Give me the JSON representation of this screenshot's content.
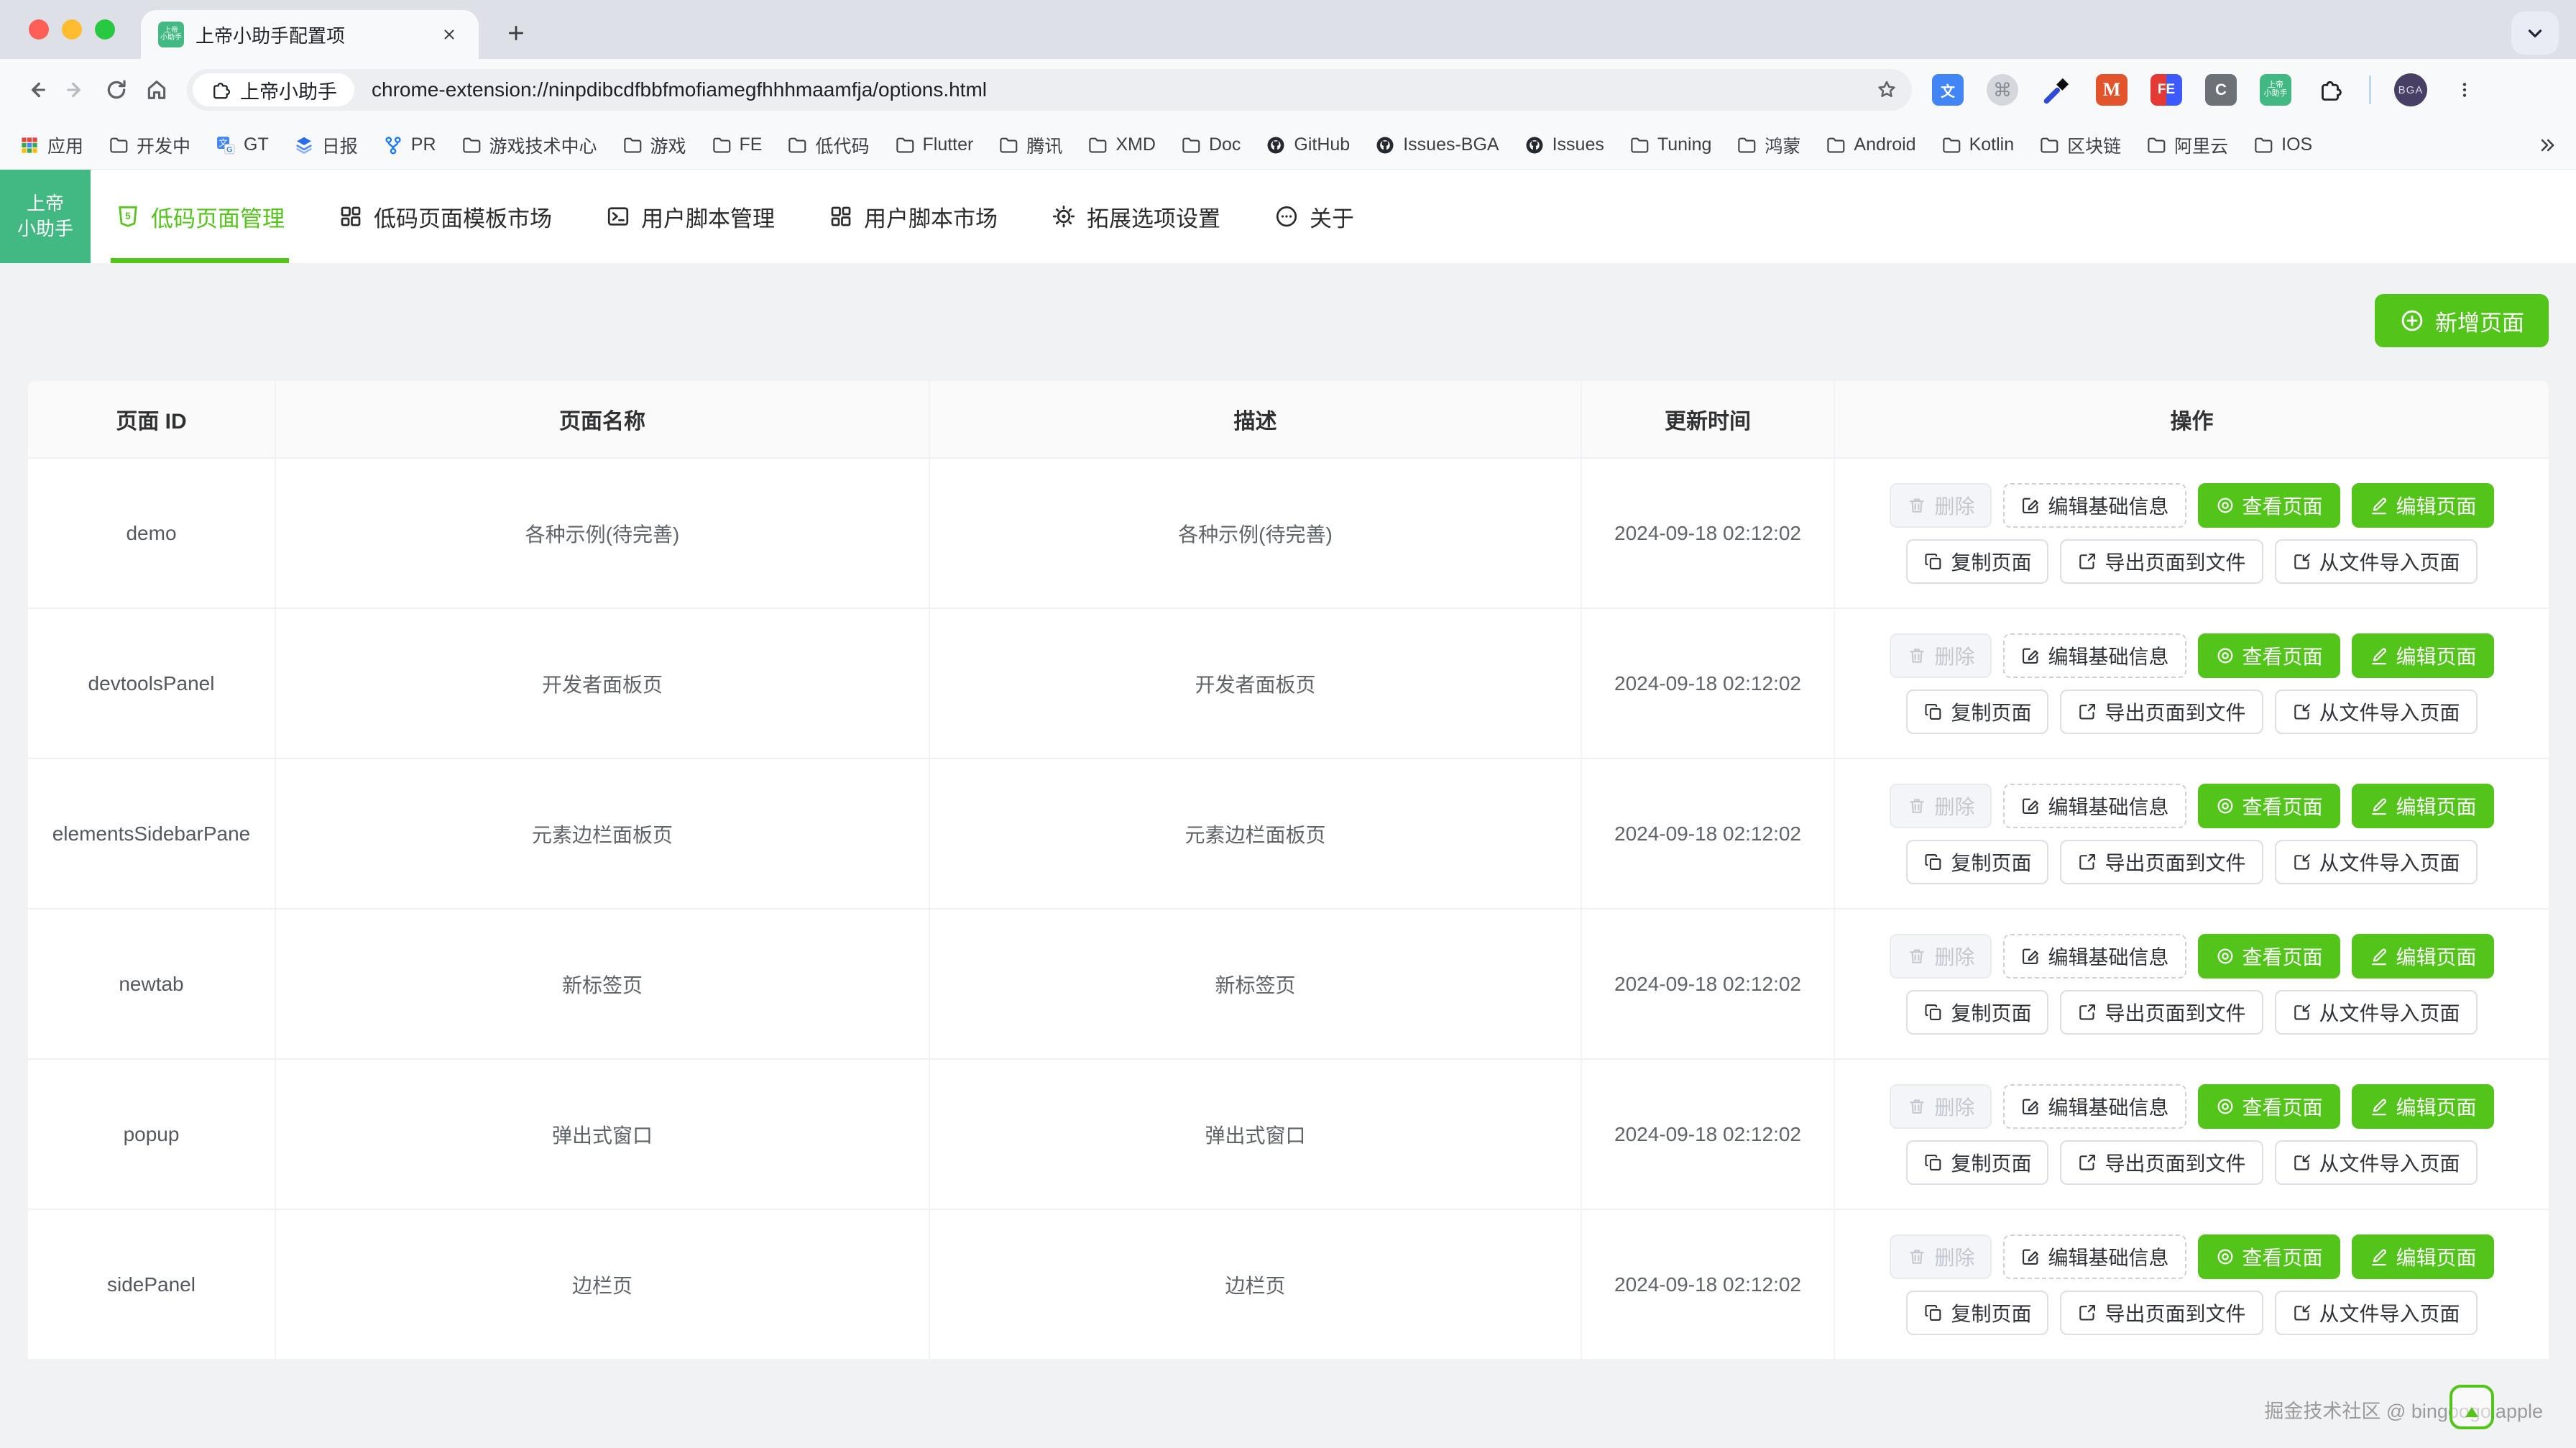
{
  "colors": {
    "accent": "#52c41a",
    "logo_green": "#42b983",
    "page_bg": "#f1f2f4"
  },
  "browser": {
    "tab": {
      "title": "上帝小助手配置项",
      "favicon_line1": "上帝",
      "favicon_line2": "小助手"
    },
    "toolbar": {
      "site_chip_label": "上帝小助手",
      "url": "chrome-extension://ninpdibcdfbbfmofiamegfhhhmaamfja/options.html"
    },
    "extensions": {
      "medium_text": "M",
      "fe_text": "FE",
      "c_text": "C",
      "command_text": "⌘",
      "assistant_line1": "上帝",
      "assistant_line2": "小助手",
      "avatar_text": "BGA"
    },
    "bookmarks": [
      {
        "icon": "apps",
        "label": "应用"
      },
      {
        "icon": "folder",
        "label": "开发中"
      },
      {
        "icon": "translate",
        "label": "GT"
      },
      {
        "icon": "daily",
        "label": "日报"
      },
      {
        "icon": "pr",
        "label": "PR"
      },
      {
        "icon": "folder",
        "label": "游戏技术中心"
      },
      {
        "icon": "folder",
        "label": "游戏"
      },
      {
        "icon": "folder",
        "label": "FE"
      },
      {
        "icon": "folder",
        "label": "低代码"
      },
      {
        "icon": "folder",
        "label": "Flutter"
      },
      {
        "icon": "folder",
        "label": "腾讯"
      },
      {
        "icon": "folder",
        "label": "XMD"
      },
      {
        "icon": "folder",
        "label": "Doc"
      },
      {
        "icon": "github",
        "label": "GitHub"
      },
      {
        "icon": "github",
        "label": "Issues-BGA"
      },
      {
        "icon": "github",
        "label": "Issues"
      },
      {
        "icon": "folder",
        "label": "Tuning"
      },
      {
        "icon": "folder",
        "label": "鸿蒙"
      },
      {
        "icon": "folder",
        "label": "Android"
      },
      {
        "icon": "folder",
        "label": "Kotlin"
      },
      {
        "icon": "folder",
        "label": "区块链"
      },
      {
        "icon": "folder",
        "label": "阿里云"
      },
      {
        "icon": "folder",
        "label": "IOS"
      }
    ]
  },
  "app": {
    "logo": {
      "line1": "上帝",
      "line2": "小助手"
    },
    "nav": [
      {
        "label": "低码页面管理",
        "active": true
      },
      {
        "label": "低码页面模板市场",
        "active": false
      },
      {
        "label": "用户脚本管理",
        "active": false
      },
      {
        "label": "用户脚本市场",
        "active": false
      },
      {
        "label": "拓展选项设置",
        "active": false
      },
      {
        "label": "关于",
        "active": false
      }
    ],
    "add_button": "新增页面",
    "table": {
      "headers": [
        "页面 ID",
        "页面名称",
        "描述",
        "更新时间",
        "操作"
      ],
      "rows": [
        {
          "id": "demo",
          "name": "各种示例(待完善)",
          "desc": "各种示例(待完善)",
          "updated": "2024-09-18 02:12:02"
        },
        {
          "id": "devtoolsPanel",
          "name": "开发者面板页",
          "desc": "开发者面板页",
          "updated": "2024-09-18 02:12:02"
        },
        {
          "id": "elementsSidebarPane",
          "name": "元素边栏面板页",
          "desc": "元素边栏面板页",
          "updated": "2024-09-18 02:12:02"
        },
        {
          "id": "newtab",
          "name": "新标签页",
          "desc": "新标签页",
          "updated": "2024-09-18 02:12:02"
        },
        {
          "id": "popup",
          "name": "弹出式窗口",
          "desc": "弹出式窗口",
          "updated": "2024-09-18 02:12:02"
        },
        {
          "id": "sidePanel",
          "name": "边栏页",
          "desc": "边栏页",
          "updated": "2024-09-18 02:12:02"
        }
      ]
    },
    "actions": {
      "delete": "删除",
      "edit_info": "编辑基础信息",
      "view": "查看页面",
      "edit_page": "编辑页面",
      "copy": "复制页面",
      "export": "导出页面到文件",
      "import": "从文件导入页面"
    },
    "footer": "掘金技术社区 @ bingoogolapple"
  }
}
